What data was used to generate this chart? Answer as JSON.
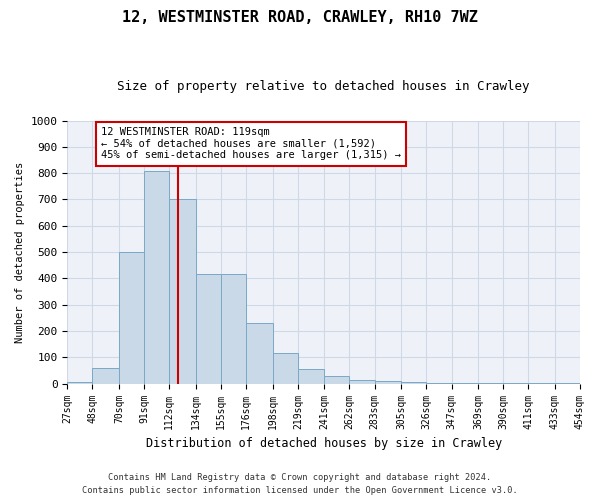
{
  "title1": "12, WESTMINSTER ROAD, CRAWLEY, RH10 7WZ",
  "title2": "Size of property relative to detached houses in Crawley",
  "xlabel": "Distribution of detached houses by size in Crawley",
  "ylabel": "Number of detached properties",
  "annotation_line1": "12 WESTMINSTER ROAD: 119sqm",
  "annotation_line2": "← 54% of detached houses are smaller (1,592)",
  "annotation_line3": "45% of semi-detached houses are larger (1,315) →",
  "property_size": 119,
  "bin_edges": [
    27,
    48,
    70,
    91,
    112,
    134,
    155,
    176,
    198,
    219,
    241,
    262,
    283,
    305,
    326,
    347,
    369,
    390,
    411,
    433,
    454
  ],
  "bar_heights": [
    5,
    60,
    500,
    810,
    700,
    415,
    415,
    230,
    115,
    55,
    30,
    15,
    10,
    5,
    3,
    3,
    2,
    2,
    1,
    1
  ],
  "bar_color": "#c9d9e8",
  "bar_edge_color": "#7aa8c7",
  "vertical_line_color": "#cc0000",
  "vertical_line_x": 119,
  "annotation_box_color": "#cc0000",
  "annotation_box_fill": "white",
  "grid_color": "#d0d8e8",
  "background_color": "#eef2f8",
  "ylim": [
    0,
    1000
  ],
  "yticks": [
    0,
    100,
    200,
    300,
    400,
    500,
    600,
    700,
    800,
    900,
    1000
  ],
  "footer1": "Contains HM Land Registry data © Crown copyright and database right 2024.",
  "footer2": "Contains public sector information licensed under the Open Government Licence v3.0."
}
